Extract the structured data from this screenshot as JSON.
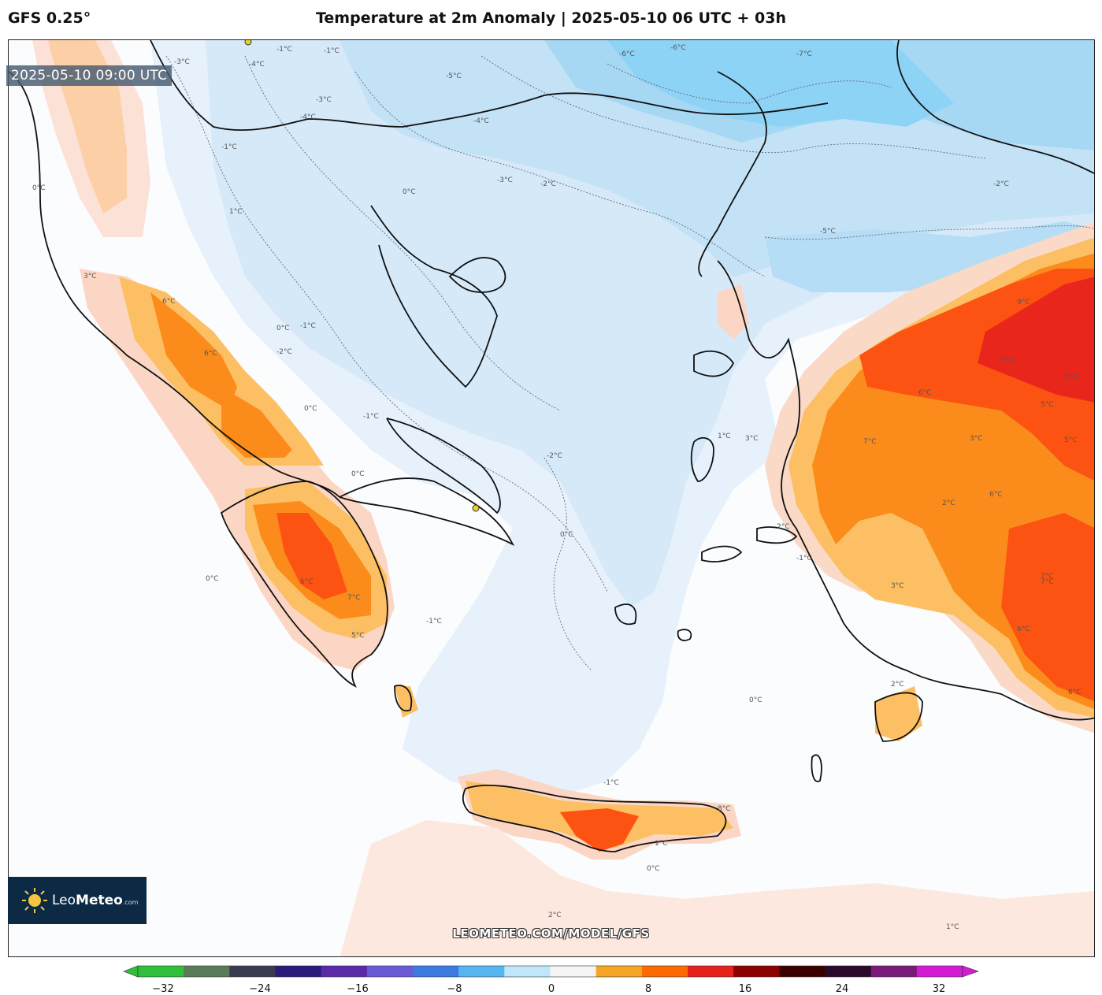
{
  "header": {
    "model": "GFS 0.25°",
    "title": "Temperature at 2m Anomaly | 2025-05-10 06 UTC + 03h"
  },
  "valid_time": "2025-05-10 09:00 UTC",
  "logo": {
    "brand_light": "Leo",
    "brand_bold": "Meteo",
    "suffix": ".com",
    "icon": "sun-icon"
  },
  "watermark": "LEOMETEO.COM/MODEL/GFS",
  "colorbar": {
    "ticks": [
      "−32",
      "−24",
      "−16",
      "−8",
      "0",
      "8",
      "16",
      "24",
      "32"
    ],
    "colors": [
      "#2fbf3a",
      "#5a7a5a",
      "#3a3a50",
      "#2a1a7a",
      "#5a2aa8",
      "#6a5ad8",
      "#3b7be0",
      "#55b5f0",
      "#bfe6fb",
      "#f5f5f5",
      "#f6a623",
      "#ff6a00",
      "#e6201b",
      "#8b0000",
      "#3a0000",
      "#2a0a2a",
      "#7a1a7a",
      "#d21bd2"
    ]
  },
  "contour_labels": {
    "neg": [
      "-1°C",
      "-2°C",
      "-3°C",
      "-4°C",
      "-5°C",
      "-6°C",
      "-7°C"
    ],
    "pos": [
      "0°C",
      "1°C",
      "2°C",
      "3°C",
      "4°C",
      "5°C",
      "6°C",
      "7°C",
      "8°C",
      "9°C"
    ]
  }
}
